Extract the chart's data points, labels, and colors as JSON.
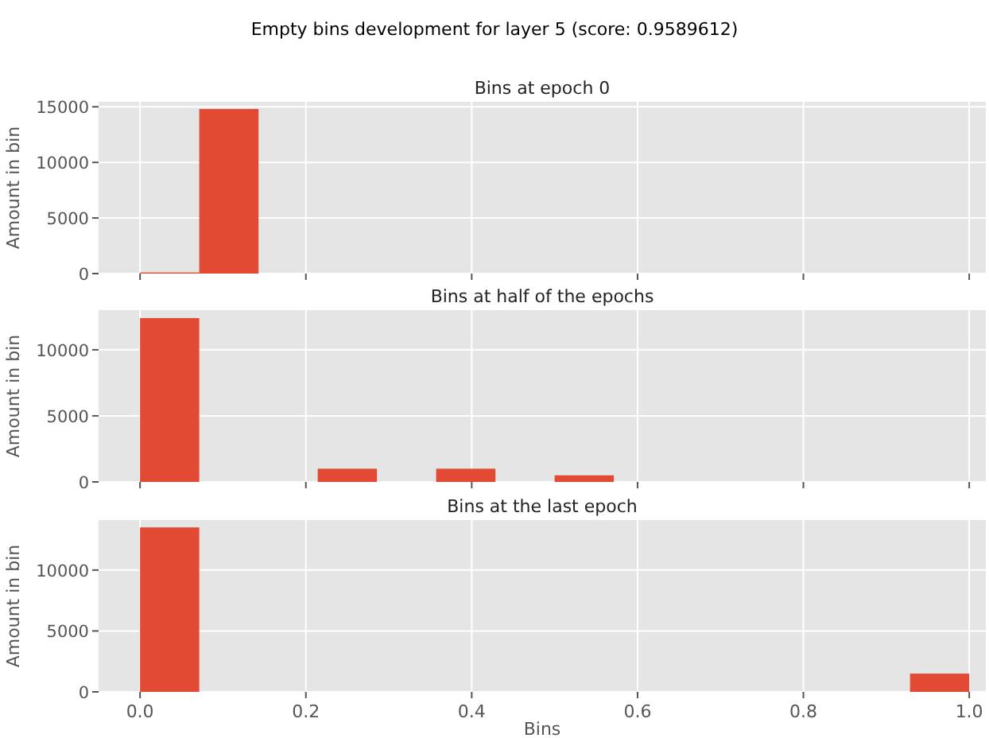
{
  "chart_data": [
    {
      "type": "histogram",
      "title": "Bins at epoch 0",
      "ylabel": "Amount in bin",
      "annotations": [
        "Empty bins development for layer 5 (score: 0.9589612)"
      ],
      "bins": [
        0,
        0.0714,
        0.1429,
        0.2143,
        0.2857,
        0.3571,
        0.4286,
        0.5,
        0.5714,
        0.6429,
        0.7143,
        0.7857,
        0.8571,
        0.9286,
        1
      ],
      "values": [
        100,
        14800,
        0,
        0,
        0,
        0,
        0,
        0,
        0,
        0,
        0,
        0,
        0,
        0
      ],
      "color": "#e24a33",
      "xlim": [
        -0.05,
        1.02
      ],
      "xticks": [
        {
          "value": 0,
          "label": null
        },
        {
          "value": 0.2,
          "label": null
        },
        {
          "value": 0.4,
          "label": null
        },
        {
          "value": 0.6,
          "label": null
        },
        {
          "value": 0.8,
          "label": null
        },
        {
          "value": 1,
          "label": null
        }
      ],
      "ylim": [
        0,
        15450
      ],
      "yticks": [
        0,
        5000,
        10000,
        15000
      ],
      "grid": true,
      "tick_labels": "y"
    },
    {
      "type": "histogram",
      "title": "Bins at half of the epochs",
      "ylabel": "Amount in bin",
      "bins": [
        0,
        0.0714,
        0.1429,
        0.2143,
        0.2857,
        0.3571,
        0.4286,
        0.5,
        0.5714,
        0.6429,
        0.7143,
        0.7857,
        0.8571,
        0.9286,
        1
      ],
      "values": [
        12400,
        0,
        0,
        1000,
        0,
        1000,
        0,
        500,
        0,
        0,
        0,
        0,
        0,
        0
      ],
      "color": "#e24a33",
      "xlim": [
        -0.05,
        1.02
      ],
      "xticks": [
        {
          "value": 0,
          "label": null
        },
        {
          "value": 0.2,
          "label": null
        },
        {
          "value": 0.4,
          "label": null
        },
        {
          "value": 0.6,
          "label": null
        },
        {
          "value": 0.8,
          "label": null
        },
        {
          "value": 1,
          "label": null
        }
      ],
      "ylim": [
        0,
        13000
      ],
      "yticks": [
        0,
        5000,
        10000
      ],
      "grid": true,
      "tick_labels": "y"
    },
    {
      "type": "histogram",
      "title": "Bins at the last epoch",
      "xlabel": "Bins",
      "ylabel": "Amount in bin",
      "bins": [
        0,
        0.0714,
        0.1429,
        0.2143,
        0.2857,
        0.3571,
        0.4286,
        0.5,
        0.5714,
        0.6429,
        0.7143,
        0.7857,
        0.8571,
        0.9286,
        1
      ],
      "values": [
        13500,
        0,
        0,
        0,
        0,
        0,
        0,
        0,
        0,
        0,
        0,
        0,
        0,
        1500
      ],
      "color": "#e24a33",
      "xlim": [
        -0.05,
        1.02
      ],
      "xticks": [
        {
          "value": 0,
          "label": "0.0"
        },
        {
          "value": 0.2,
          "label": "0.2"
        },
        {
          "value": 0.4,
          "label": "0.4"
        },
        {
          "value": 0.6,
          "label": "0.6"
        },
        {
          "value": 0.8,
          "label": "0.8"
        },
        {
          "value": 1,
          "label": "1.0"
        }
      ],
      "ylim": [
        0,
        14100
      ],
      "yticks": [
        0,
        5000,
        10000
      ],
      "grid": true
    }
  ]
}
